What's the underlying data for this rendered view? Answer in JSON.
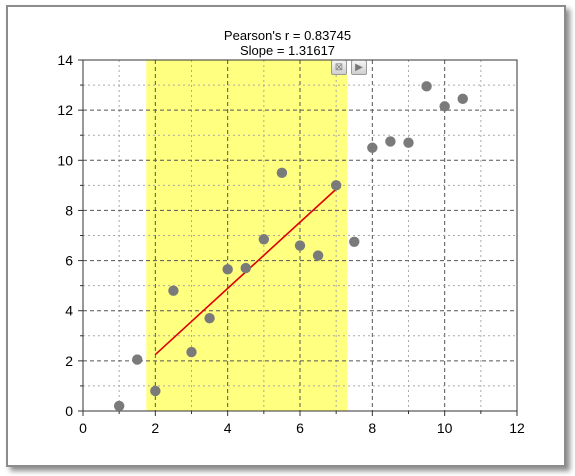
{
  "chart_data": {
    "type": "scatter",
    "title_lines": [
      "Pearson's r = 0.83745",
      "Slope = 1.31617"
    ],
    "xlim": [
      0,
      12
    ],
    "ylim": [
      0,
      14
    ],
    "x_ticks": [
      "0",
      "2",
      "4",
      "6",
      "8",
      "10",
      "12"
    ],
    "y_ticks": [
      "0",
      "2",
      "4",
      "6",
      "8",
      "10",
      "12",
      "14"
    ],
    "grid": true,
    "highlight_region": {
      "x_from": 1.75,
      "x_to": 7.3,
      "color": "#ffff80"
    },
    "points": [
      {
        "x": 1.0,
        "y": 0.2
      },
      {
        "x": 1.5,
        "y": 2.05
      },
      {
        "x": 2.0,
        "y": 0.8
      },
      {
        "x": 2.5,
        "y": 4.8
      },
      {
        "x": 3.0,
        "y": 2.35
      },
      {
        "x": 3.5,
        "y": 3.7
      },
      {
        "x": 4.0,
        "y": 5.65
      },
      {
        "x": 4.5,
        "y": 5.7
      },
      {
        "x": 5.0,
        "y": 6.85
      },
      {
        "x": 5.5,
        "y": 9.5
      },
      {
        "x": 6.0,
        "y": 6.6
      },
      {
        "x": 6.5,
        "y": 6.2
      },
      {
        "x": 7.0,
        "y": 9.0
      },
      {
        "x": 7.5,
        "y": 6.75
      },
      {
        "x": 8.0,
        "y": 10.5
      },
      {
        "x": 8.5,
        "y": 10.75
      },
      {
        "x": 9.0,
        "y": 10.7
      },
      {
        "x": 9.5,
        "y": 12.95
      },
      {
        "x": 10.0,
        "y": 12.15
      },
      {
        "x": 10.5,
        "y": 12.45
      }
    ],
    "point_color": "#7a7a7a",
    "fit_line": {
      "x1": 2.0,
      "y1": 2.25,
      "x2": 7.0,
      "y2": 8.85,
      "color": "#e00000"
    }
  },
  "controls": {
    "close_symbol": "⊠",
    "play_symbol": "▶"
  }
}
